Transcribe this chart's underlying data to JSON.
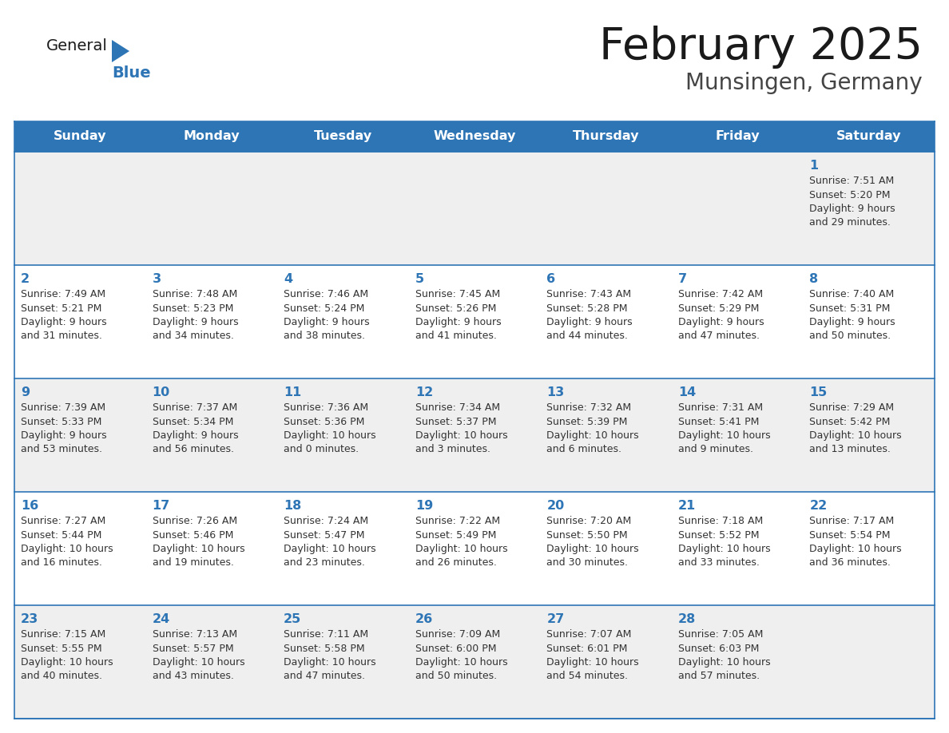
{
  "title": "February 2025",
  "subtitle": "Munsingen, Germany",
  "header_bg": "#2E75B6",
  "header_text": "#FFFFFF",
  "cell_bg_odd": "#EFEFEF",
  "cell_bg_even": "#FFFFFF",
  "day_number_color": "#2E75B6",
  "cell_text_color": "#333333",
  "border_color": "#2E75B6",
  "days_of_week": [
    "Sunday",
    "Monday",
    "Tuesday",
    "Wednesday",
    "Thursday",
    "Friday",
    "Saturday"
  ],
  "weeks": [
    [
      {
        "day": null,
        "info": null
      },
      {
        "day": null,
        "info": null
      },
      {
        "day": null,
        "info": null
      },
      {
        "day": null,
        "info": null
      },
      {
        "day": null,
        "info": null
      },
      {
        "day": null,
        "info": null
      },
      {
        "day": "1",
        "info": "Sunrise: 7:51 AM\nSunset: 5:20 PM\nDaylight: 9 hours\nand 29 minutes."
      }
    ],
    [
      {
        "day": "2",
        "info": "Sunrise: 7:49 AM\nSunset: 5:21 PM\nDaylight: 9 hours\nand 31 minutes."
      },
      {
        "day": "3",
        "info": "Sunrise: 7:48 AM\nSunset: 5:23 PM\nDaylight: 9 hours\nand 34 minutes."
      },
      {
        "day": "4",
        "info": "Sunrise: 7:46 AM\nSunset: 5:24 PM\nDaylight: 9 hours\nand 38 minutes."
      },
      {
        "day": "5",
        "info": "Sunrise: 7:45 AM\nSunset: 5:26 PM\nDaylight: 9 hours\nand 41 minutes."
      },
      {
        "day": "6",
        "info": "Sunrise: 7:43 AM\nSunset: 5:28 PM\nDaylight: 9 hours\nand 44 minutes."
      },
      {
        "day": "7",
        "info": "Sunrise: 7:42 AM\nSunset: 5:29 PM\nDaylight: 9 hours\nand 47 minutes."
      },
      {
        "day": "8",
        "info": "Sunrise: 7:40 AM\nSunset: 5:31 PM\nDaylight: 9 hours\nand 50 minutes."
      }
    ],
    [
      {
        "day": "9",
        "info": "Sunrise: 7:39 AM\nSunset: 5:33 PM\nDaylight: 9 hours\nand 53 minutes."
      },
      {
        "day": "10",
        "info": "Sunrise: 7:37 AM\nSunset: 5:34 PM\nDaylight: 9 hours\nand 56 minutes."
      },
      {
        "day": "11",
        "info": "Sunrise: 7:36 AM\nSunset: 5:36 PM\nDaylight: 10 hours\nand 0 minutes."
      },
      {
        "day": "12",
        "info": "Sunrise: 7:34 AM\nSunset: 5:37 PM\nDaylight: 10 hours\nand 3 minutes."
      },
      {
        "day": "13",
        "info": "Sunrise: 7:32 AM\nSunset: 5:39 PM\nDaylight: 10 hours\nand 6 minutes."
      },
      {
        "day": "14",
        "info": "Sunrise: 7:31 AM\nSunset: 5:41 PM\nDaylight: 10 hours\nand 9 minutes."
      },
      {
        "day": "15",
        "info": "Sunrise: 7:29 AM\nSunset: 5:42 PM\nDaylight: 10 hours\nand 13 minutes."
      }
    ],
    [
      {
        "day": "16",
        "info": "Sunrise: 7:27 AM\nSunset: 5:44 PM\nDaylight: 10 hours\nand 16 minutes."
      },
      {
        "day": "17",
        "info": "Sunrise: 7:26 AM\nSunset: 5:46 PM\nDaylight: 10 hours\nand 19 minutes."
      },
      {
        "day": "18",
        "info": "Sunrise: 7:24 AM\nSunset: 5:47 PM\nDaylight: 10 hours\nand 23 minutes."
      },
      {
        "day": "19",
        "info": "Sunrise: 7:22 AM\nSunset: 5:49 PM\nDaylight: 10 hours\nand 26 minutes."
      },
      {
        "day": "20",
        "info": "Sunrise: 7:20 AM\nSunset: 5:50 PM\nDaylight: 10 hours\nand 30 minutes."
      },
      {
        "day": "21",
        "info": "Sunrise: 7:18 AM\nSunset: 5:52 PM\nDaylight: 10 hours\nand 33 minutes."
      },
      {
        "day": "22",
        "info": "Sunrise: 7:17 AM\nSunset: 5:54 PM\nDaylight: 10 hours\nand 36 minutes."
      }
    ],
    [
      {
        "day": "23",
        "info": "Sunrise: 7:15 AM\nSunset: 5:55 PM\nDaylight: 10 hours\nand 40 minutes."
      },
      {
        "day": "24",
        "info": "Sunrise: 7:13 AM\nSunset: 5:57 PM\nDaylight: 10 hours\nand 43 minutes."
      },
      {
        "day": "25",
        "info": "Sunrise: 7:11 AM\nSunset: 5:58 PM\nDaylight: 10 hours\nand 47 minutes."
      },
      {
        "day": "26",
        "info": "Sunrise: 7:09 AM\nSunset: 6:00 PM\nDaylight: 10 hours\nand 50 minutes."
      },
      {
        "day": "27",
        "info": "Sunrise: 7:07 AM\nSunset: 6:01 PM\nDaylight: 10 hours\nand 54 minutes."
      },
      {
        "day": "28",
        "info": "Sunrise: 7:05 AM\nSunset: 6:03 PM\nDaylight: 10 hours\nand 57 minutes."
      },
      {
        "day": null,
        "info": null
      }
    ]
  ]
}
